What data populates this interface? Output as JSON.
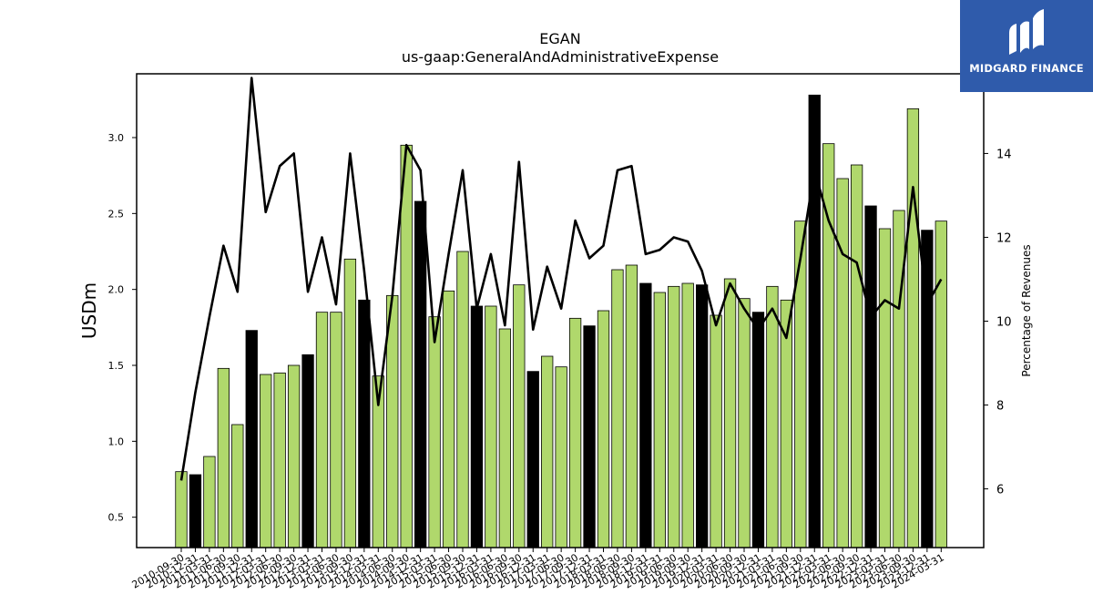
{
  "chart_data": {
    "type": "bar+line",
    "title": "EGAN",
    "subtitle": "us-gaap:GeneralAndAdministrativeExpense",
    "ylabel": "USDm",
    "y2label": "Percentage of Revenues",
    "ylim": [
      0.3,
      3.42
    ],
    "y2lim": [
      4.6,
      15.9
    ],
    "yticks": [
      0.5,
      1.0,
      1.5,
      2.0,
      2.5,
      3.0
    ],
    "ytick_labels": [
      "0.5",
      "1.0",
      "1.5",
      "2.0",
      "2.5",
      "3.0"
    ],
    "y2ticks": [
      6,
      8,
      10,
      12,
      14
    ],
    "y2tick_labels": [
      "6",
      "8",
      "10",
      "12",
      "14"
    ],
    "bar_colors": {
      "quarter": "#b0d86c",
      "fiscal_year_end": "#000000"
    },
    "line_color": "#000000",
    "x": [
      "2010-09-30",
      "2010-12-31",
      "2011-03-31",
      "2011-06-30",
      "2011-09-30",
      "2011-12-31",
      "2012-03-31",
      "2012-06-30",
      "2012-09-30",
      "2012-12-31",
      "2013-03-31",
      "2013-06-30",
      "2013-09-30",
      "2013-12-31",
      "2014-03-31",
      "2014-06-30",
      "2014-09-30",
      "2014-12-31",
      "2015-03-31",
      "2015-06-30",
      "2015-09-30",
      "2015-12-31",
      "2016-03-31",
      "2016-06-30",
      "2016-09-30",
      "2016-12-31",
      "2017-03-31",
      "2017-06-30",
      "2017-09-30",
      "2017-12-31",
      "2018-03-31",
      "2018-06-30",
      "2018-09-30",
      "2018-12-31",
      "2019-03-31",
      "2019-06-30",
      "2019-09-30",
      "2019-12-31",
      "2020-03-31",
      "2020-06-30",
      "2020-09-30",
      "2020-12-31",
      "2021-03-31",
      "2021-06-30",
      "2021-09-30",
      "2021-12-31",
      "2022-03-31",
      "2022-06-30",
      "2022-09-30",
      "2022-12-31",
      "2023-03-31",
      "2023-06-30",
      "2023-09-30",
      "2023-12-31",
      "2024-03-31"
    ],
    "fiscal_year_end": [
      false,
      true,
      false,
      false,
      false,
      true,
      false,
      false,
      false,
      true,
      false,
      false,
      false,
      true,
      false,
      false,
      false,
      true,
      false,
      false,
      false,
      true,
      false,
      false,
      false,
      true,
      false,
      false,
      false,
      true,
      false,
      false,
      false,
      true,
      false,
      false,
      false,
      true,
      false,
      false,
      false,
      true,
      false,
      false,
      false,
      true,
      false,
      false,
      false,
      true,
      false,
      false,
      false,
      true,
      false
    ],
    "series": [
      {
        "name": "USDm",
        "type": "bar",
        "values": [
          0.8,
          0.78,
          0.9,
          1.48,
          1.11,
          1.73,
          1.44,
          1.45,
          1.5,
          1.57,
          1.85,
          1.85,
          2.2,
          1.93,
          1.43,
          1.96,
          2.95,
          2.58,
          1.82,
          1.99,
          2.25,
          1.89,
          1.89,
          1.74,
          2.03,
          1.46,
          1.56,
          1.49,
          1.81,
          1.76,
          1.86,
          2.13,
          2.16,
          2.04,
          1.98,
          2.02,
          2.04,
          2.03,
          1.83,
          2.07,
          1.94,
          1.85,
          2.02,
          1.93,
          2.45,
          3.28,
          2.96,
          2.73,
          2.82,
          2.55,
          2.4,
          2.52,
          3.19,
          2.39,
          2.45
        ]
      },
      {
        "name": "Percentage of Revenues",
        "type": "line",
        "axis": "right",
        "values": [
          6.2,
          8.3,
          10.1,
          11.8,
          10.7,
          15.8,
          12.6,
          13.7,
          14.0,
          10.7,
          12.0,
          10.4,
          14.0,
          11.2,
          8.0,
          10.6,
          14.2,
          13.6,
          9.5,
          11.6,
          13.6,
          10.3,
          11.6,
          9.9,
          13.8,
          9.8,
          11.3,
          10.3,
          12.4,
          11.5,
          11.8,
          13.6,
          13.7,
          11.6,
          11.7,
          12.0,
          11.9,
          11.2,
          9.9,
          10.9,
          10.3,
          9.8,
          10.3,
          9.6,
          11.5,
          13.6,
          12.4,
          11.6,
          11.4,
          10.1,
          10.5,
          10.3,
          13.2,
          10.4,
          11.0
        ]
      }
    ]
  },
  "logo": {
    "text": "MIDGARD FINANCE"
  }
}
